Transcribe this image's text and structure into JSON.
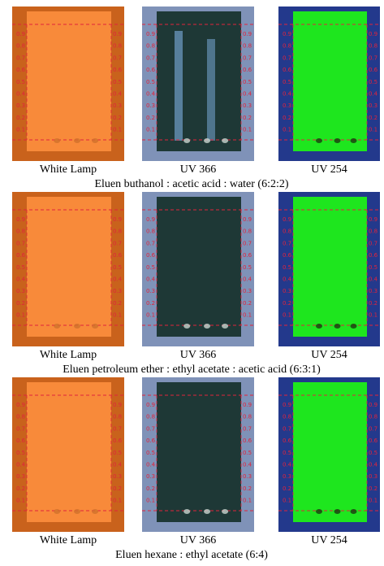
{
  "rows": [
    {
      "panels": [
        "White Lamp",
        "UV 366",
        "UV 254"
      ],
      "eluent": "Eluen buthanol : acetic acid : water (6:2:2)"
    },
    {
      "panels": [
        "White Lamp",
        "UV 366",
        "UV 254"
      ],
      "eluent": "Eluen petroleum ether : ethyl acetate : acetic acid (6:3:1)"
    },
    {
      "panels": [
        "White Lamp",
        "UV 366",
        "UV 254"
      ],
      "eluent": "Eluen hexane : ethyl acetate (6:4)"
    }
  ],
  "scale": [
    "0.9",
    "0.8",
    "0.7",
    "0.6",
    "0.5",
    "0.4",
    "0.3",
    "0.2",
    "0.1"
  ]
}
